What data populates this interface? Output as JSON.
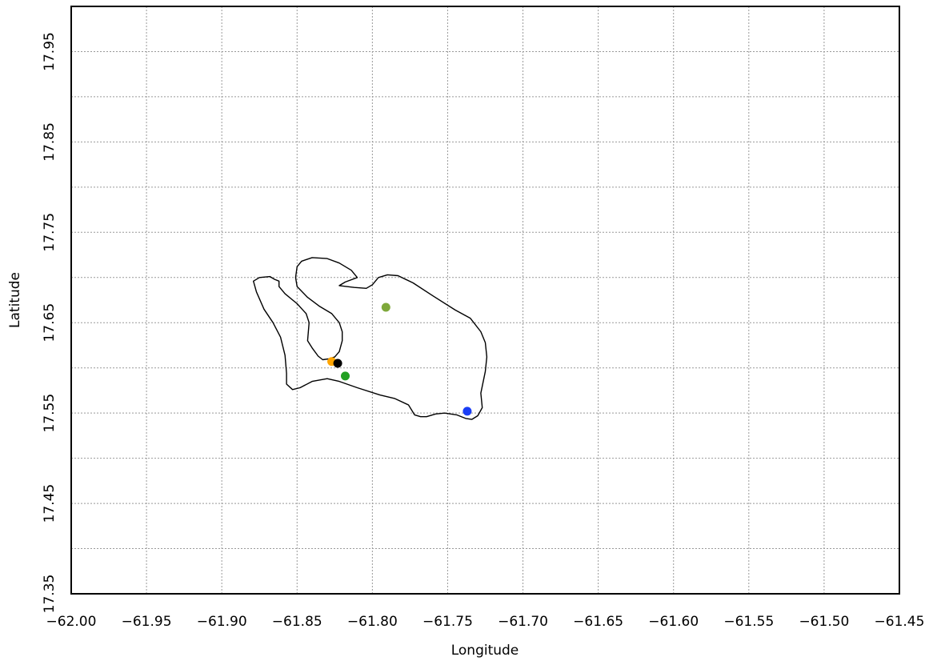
{
  "chart_data": {
    "type": "scatter",
    "title": "",
    "xlabel": "Longitude",
    "ylabel": "Latitude",
    "xlim": [
      -62.0,
      -61.45
    ],
    "ylim": [
      17.35,
      18.0
    ],
    "grid": true,
    "grid_x": [
      -61.95,
      -61.9,
      -61.85,
      -61.8,
      -61.75,
      -61.7,
      -61.65,
      -61.6,
      -61.55,
      -61.5
    ],
    "grid_y": [
      17.4,
      17.45,
      17.5,
      17.55,
      17.6,
      17.65,
      17.7,
      17.75,
      17.8,
      17.85,
      17.9,
      17.95
    ],
    "x_ticks": [
      "-62.00",
      "-61.95",
      "-61.90",
      "-61.85",
      "-61.80",
      "-61.75",
      "-61.70",
      "-61.65",
      "-61.60",
      "-61.55",
      "-61.50",
      "-61.45"
    ],
    "y_ticks": [
      "17.35",
      "17.45",
      "17.55",
      "17.65",
      "17.75",
      "17.85",
      "17.95"
    ],
    "coastline": [
      [
        -61.875,
        17.7
      ],
      [
        -61.868,
        17.701
      ],
      [
        -61.865,
        17.698
      ],
      [
        -61.862,
        17.696
      ],
      [
        -61.862,
        17.69
      ],
      [
        -61.858,
        17.682
      ],
      [
        -61.85,
        17.671
      ],
      [
        -61.844,
        17.66
      ],
      [
        -61.842,
        17.65
      ],
      [
        -61.843,
        17.63
      ],
      [
        -61.84,
        17.622
      ],
      [
        -61.836,
        17.613
      ],
      [
        -61.833,
        17.609
      ],
      [
        -61.829,
        17.61
      ],
      [
        -61.825,
        17.612
      ],
      [
        -61.822,
        17.618
      ],
      [
        -61.82,
        17.63
      ],
      [
        -61.82,
        17.64
      ],
      [
        -61.822,
        17.65
      ],
      [
        -61.827,
        17.66
      ],
      [
        -61.835,
        17.668
      ],
      [
        -61.843,
        17.678
      ],
      [
        -61.85,
        17.69
      ],
      [
        -61.851,
        17.7
      ],
      [
        -61.85,
        17.712
      ],
      [
        -61.847,
        17.718
      ],
      [
        -61.84,
        17.722
      ],
      [
        -61.83,
        17.721
      ],
      [
        -61.822,
        17.716
      ],
      [
        -61.814,
        17.708
      ],
      [
        -61.81,
        17.7
      ],
      [
        -61.818,
        17.695
      ],
      [
        -61.822,
        17.691
      ],
      [
        -61.812,
        17.689
      ],
      [
        -61.804,
        17.688
      ],
      [
        -61.8,
        17.692
      ],
      [
        -61.796,
        17.7
      ],
      [
        -61.79,
        17.703
      ],
      [
        -61.783,
        17.702
      ],
      [
        -61.773,
        17.694
      ],
      [
        -61.76,
        17.68
      ],
      [
        -61.745,
        17.664
      ],
      [
        -61.735,
        17.655
      ],
      [
        -61.728,
        17.64
      ],
      [
        -61.725,
        17.628
      ],
      [
        -61.724,
        17.612
      ],
      [
        -61.725,
        17.596
      ],
      [
        -61.728,
        17.572
      ],
      [
        -61.727,
        17.556
      ],
      [
        -61.73,
        17.547
      ],
      [
        -61.734,
        17.543
      ],
      [
        -61.738,
        17.544
      ],
      [
        -61.744,
        17.548
      ],
      [
        -61.752,
        17.55
      ],
      [
        -61.758,
        17.549
      ],
      [
        -61.764,
        17.546
      ],
      [
        -61.768,
        17.546
      ],
      [
        -61.772,
        17.548
      ],
      [
        -61.776,
        17.559
      ],
      [
        -61.785,
        17.566
      ],
      [
        -61.795,
        17.57
      ],
      [
        -61.81,
        17.578
      ],
      [
        -61.822,
        17.585
      ],
      [
        -61.83,
        17.588
      ],
      [
        -61.84,
        17.585
      ],
      [
        -61.848,
        17.578
      ],
      [
        -61.853,
        17.576
      ],
      [
        -61.857,
        17.582
      ],
      [
        -61.857,
        17.594
      ],
      [
        -61.858,
        17.614
      ],
      [
        -61.861,
        17.634
      ],
      [
        -61.866,
        17.65
      ],
      [
        -61.872,
        17.665
      ],
      [
        -61.877,
        17.684
      ],
      [
        -61.879,
        17.696
      ],
      [
        -61.875,
        17.7
      ]
    ],
    "series": [
      {
        "values": [
          [
            -61.827,
            17.607
          ]
        ],
        "color": "#ffa500"
      },
      {
        "values": [
          [
            -61.823,
            17.605
          ]
        ],
        "color": "#000000"
      },
      {
        "values": [
          [
            -61.818,
            17.591
          ]
        ],
        "color": "#22a022"
      },
      {
        "values": [
          [
            -61.791,
            17.667
          ]
        ],
        "color": "#7ea83a"
      },
      {
        "values": [
          [
            -61.737,
            17.552
          ]
        ],
        "color": "#1a3ef5"
      }
    ]
  }
}
